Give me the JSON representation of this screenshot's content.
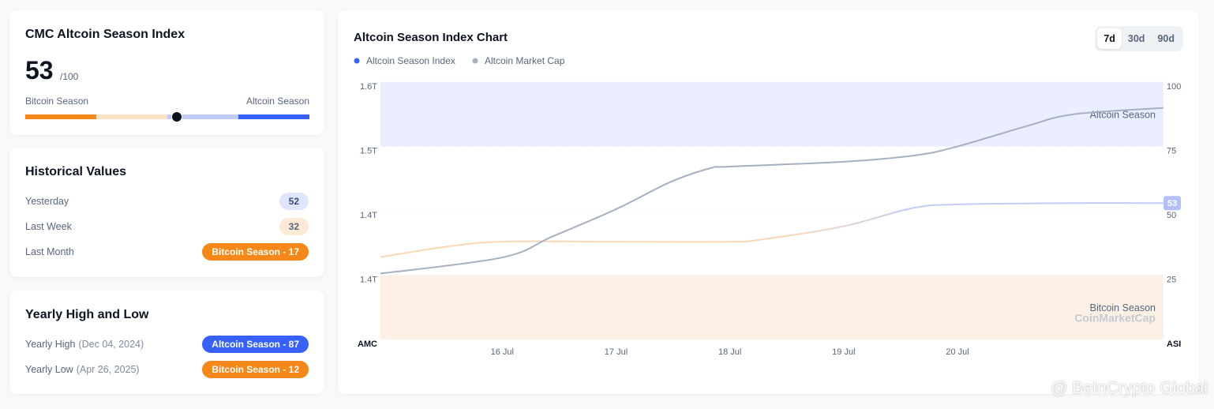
{
  "index_card": {
    "title": "CMC Altcoin Season Index",
    "value": 53,
    "max": 100,
    "max_label": "/100",
    "left_label": "Bitcoin Season",
    "right_label": "Altcoin Season"
  },
  "historical": {
    "title": "Historical Values",
    "rows": [
      {
        "label": "Yesterday",
        "value": "52"
      },
      {
        "label": "Last Week",
        "value": "32"
      },
      {
        "label": "Last Month",
        "value": "Bitcoin Season - 17"
      }
    ]
  },
  "yearly": {
    "title": "Yearly High and Low",
    "rows": [
      {
        "label": "Yearly High",
        "date": "(Dec 04, 2024)",
        "value": "Altcoin Season - 87"
      },
      {
        "label": "Yearly Low",
        "date": "(Apr 26, 2025)",
        "value": "Bitcoin Season - 12"
      }
    ]
  },
  "range_buttons": [
    "7d",
    "30d",
    "90d"
  ],
  "chart_data": {
    "type": "line",
    "title": "Altcoin Season Index Chart",
    "ylabel": "AMC",
    "y2label": "ASI",
    "xlim": [
      14.93,
      21.81
    ],
    "xticks": [
      {
        "value": 16,
        "label": "16 Jul"
      },
      {
        "value": 17,
        "label": "17 Jul"
      },
      {
        "value": 18,
        "label": "18 Jul"
      },
      {
        "value": 19,
        "label": "19 Jul"
      },
      {
        "value": 20,
        "label": "20 Jul"
      }
    ],
    "ylim": [
      1.27,
      1.59
    ],
    "yticks": [
      {
        "value": 1.59,
        "label": "1.6T"
      },
      {
        "value": 1.51,
        "label": "1.5T"
      },
      {
        "value": 1.43,
        "label": "1.4T"
      },
      {
        "value": 1.35,
        "label": "1.4T"
      }
    ],
    "y2lim": [
      0,
      100
    ],
    "y2ticks": [
      25,
      50,
      75,
      100
    ],
    "grid": true,
    "bands": [
      {
        "label": "Altcoin Season",
        "from": 75,
        "to": 100,
        "color": "#ebeefe"
      },
      {
        "label": "Bitcoin Season",
        "from": 0,
        "to": 25,
        "color": "#fdf1e6"
      }
    ],
    "series": [
      {
        "name": "Altcoin Season Index",
        "color": "#3861fb",
        "axis": "y2",
        "x": [
          14.93,
          15.5,
          16,
          17,
          18,
          18.3,
          19,
          19.6,
          20,
          21,
          21.81
        ],
        "values": [
          32,
          36,
          38,
          38,
          38,
          39,
          44,
          51,
          52.5,
          53,
          53
        ]
      },
      {
        "name": "Altcoin Market Cap",
        "color": "#a6b0c3",
        "x": [
          14.93,
          16,
          16.44,
          17,
          17.48,
          17.83,
          18,
          19,
          19.63,
          20,
          20.6,
          21.02,
          21.81
        ],
        "values": [
          1.352,
          1.372,
          1.398,
          1.432,
          1.466,
          1.483,
          1.485,
          1.491,
          1.499,
          1.51,
          1.535,
          1.55,
          1.558
        ]
      }
    ],
    "watermark": "CoinMarketCap"
  },
  "overlay_watermark": "@ BeInCrypto Global"
}
